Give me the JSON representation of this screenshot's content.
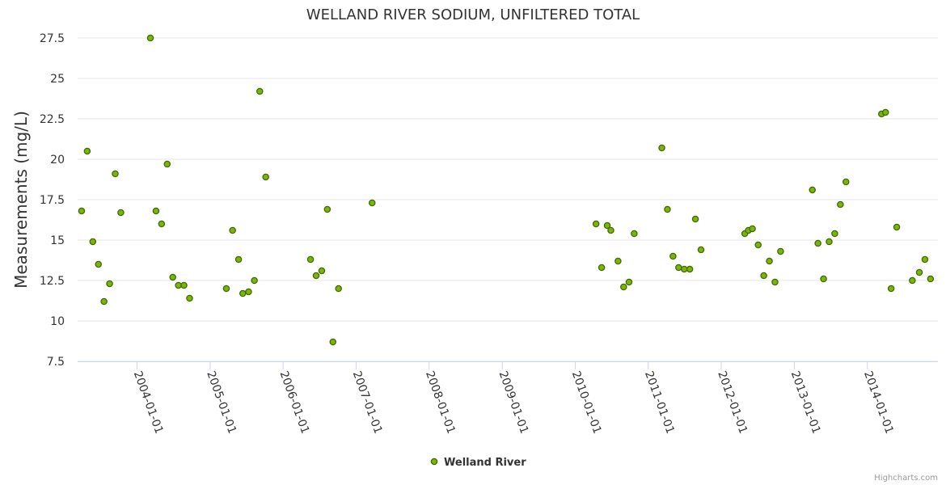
{
  "chart_data": {
    "type": "scatter",
    "title": "WELLAND RIVER SODIUM, UNFILTERED TOTAL",
    "xlabel": "",
    "ylabel": "Measurements (mg/L)",
    "ylim": [
      7.5,
      27.5
    ],
    "yticks": [
      "7.5",
      "10",
      "12.5",
      "15",
      "17.5",
      "20",
      "22.5",
      "25",
      "27.5"
    ],
    "xlim": [
      "2003-03-10",
      "2014-12-20"
    ],
    "xticks": [
      "2004-01-01",
      "2005-01-01",
      "2006-01-01",
      "2007-01-01",
      "2008-01-01",
      "2009-01-01",
      "2010-01-01",
      "2011-01-01",
      "2012-01-01",
      "2013-01-01",
      "2014-01-01"
    ],
    "grid": "horizontal",
    "legend_position": "bottom-center",
    "colors": {
      "marker_fill": "#7cb50a",
      "marker_stroke": "#3d6b00",
      "grid": "#e6e6e6",
      "axis": "#ccd6eb"
    },
    "series": [
      {
        "name": "Welland River",
        "points": [
          [
            "2003-03-30",
            16.8
          ],
          [
            "2003-04-27",
            20.5
          ],
          [
            "2003-05-25",
            14.9
          ],
          [
            "2003-06-22",
            13.5
          ],
          [
            "2003-07-20",
            11.2
          ],
          [
            "2003-08-17",
            12.3
          ],
          [
            "2003-09-14",
            19.1
          ],
          [
            "2003-10-12",
            16.7
          ],
          [
            "2004-03-08",
            27.5
          ],
          [
            "2004-04-05",
            16.8
          ],
          [
            "2004-05-03",
            16.0
          ],
          [
            "2004-05-31",
            19.7
          ],
          [
            "2004-06-28",
            12.7
          ],
          [
            "2004-07-26",
            12.2
          ],
          [
            "2004-08-23",
            12.2
          ],
          [
            "2004-09-20",
            11.4
          ],
          [
            "2005-03-23",
            12.0
          ],
          [
            "2005-04-23",
            15.6
          ],
          [
            "2005-05-23",
            13.8
          ],
          [
            "2005-06-13",
            11.7
          ],
          [
            "2005-07-12",
            11.8
          ],
          [
            "2005-08-10",
            12.5
          ],
          [
            "2005-09-06",
            24.2
          ],
          [
            "2005-10-06",
            18.9
          ],
          [
            "2006-05-18",
            13.8
          ],
          [
            "2006-06-15",
            12.8
          ],
          [
            "2006-07-13",
            13.1
          ],
          [
            "2006-08-10",
            16.9
          ],
          [
            "2006-09-07",
            8.7
          ],
          [
            "2006-10-05",
            12.0
          ],
          [
            "2007-03-22",
            17.3
          ],
          [
            "2010-04-15",
            16.0
          ],
          [
            "2010-05-13",
            13.3
          ],
          [
            "2010-06-10",
            15.9
          ],
          [
            "2010-06-28",
            15.6
          ],
          [
            "2010-08-03",
            13.7
          ],
          [
            "2010-08-31",
            12.1
          ],
          [
            "2010-09-27",
            12.4
          ],
          [
            "2010-10-23",
            15.4
          ],
          [
            "2011-03-10",
            20.7
          ],
          [
            "2011-04-07",
            16.9
          ],
          [
            "2011-05-05",
            14.0
          ],
          [
            "2011-06-02",
            13.3
          ],
          [
            "2011-06-30",
            13.2
          ],
          [
            "2011-07-28",
            13.2
          ],
          [
            "2011-08-25",
            16.3
          ],
          [
            "2011-09-22",
            14.4
          ],
          [
            "2012-04-28",
            15.4
          ],
          [
            "2012-05-16",
            15.6
          ],
          [
            "2012-06-05",
            15.7
          ],
          [
            "2012-07-04",
            14.7
          ],
          [
            "2012-08-01",
            12.8
          ],
          [
            "2012-08-29",
            13.7
          ],
          [
            "2012-09-26",
            12.4
          ],
          [
            "2012-10-24",
            14.3
          ],
          [
            "2013-04-01",
            18.1
          ],
          [
            "2013-04-29",
            14.8
          ],
          [
            "2013-05-27",
            12.6
          ],
          [
            "2013-06-24",
            14.9
          ],
          [
            "2013-07-22",
            15.4
          ],
          [
            "2013-08-19",
            17.2
          ],
          [
            "2013-09-16",
            18.6
          ],
          [
            "2014-03-13",
            22.8
          ],
          [
            "2014-04-02",
            22.9
          ],
          [
            "2014-04-30",
            12.0
          ],
          [
            "2014-05-28",
            15.8
          ],
          [
            "2014-08-14",
            12.5
          ],
          [
            "2014-09-18",
            13.0
          ],
          [
            "2014-10-16",
            13.8
          ],
          [
            "2014-11-13",
            12.6
          ]
        ]
      }
    ]
  },
  "credits": "Highcharts.com"
}
